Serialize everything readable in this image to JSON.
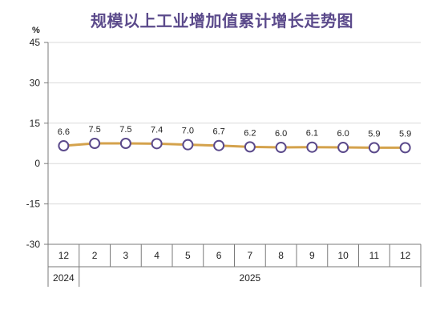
{
  "chart_data": {
    "type": "line",
    "title": "规模以上工业增加值累计增长走势图",
    "ylabel": "%",
    "xlabel": "",
    "ylim": [
      -30,
      45
    ],
    "yticks": [
      -30,
      -15,
      0,
      15,
      30,
      45
    ],
    "grid": true,
    "categories": [
      "12",
      "2",
      "3",
      "4",
      "5",
      "6",
      "7",
      "8",
      "9",
      "10",
      "11",
      "12"
    ],
    "years": [
      {
        "label": "2024",
        "from": 0,
        "to": 0
      },
      {
        "label": "2025",
        "from": 1,
        "to": 11
      }
    ],
    "values": [
      6.6,
      7.5,
      7.5,
      7.4,
      7.0,
      6.7,
      6.2,
      6.0,
      6.1,
      6.0,
      5.9,
      5.9
    ],
    "data_labels": [
      "6.6",
      "7.5",
      "7.5",
      "7.4",
      "7.0",
      "6.7",
      "6.2",
      "6.0",
      "6.1",
      "6.0",
      "5.9",
      "5.9"
    ],
    "colors": {
      "line": "#d4a24c",
      "marker_stroke": "#5b4a8b",
      "marker_fill": "#ffffff",
      "title": "#5b4a8b",
      "grid": "#d9d9d9",
      "axis": "#7a7a7a"
    }
  }
}
